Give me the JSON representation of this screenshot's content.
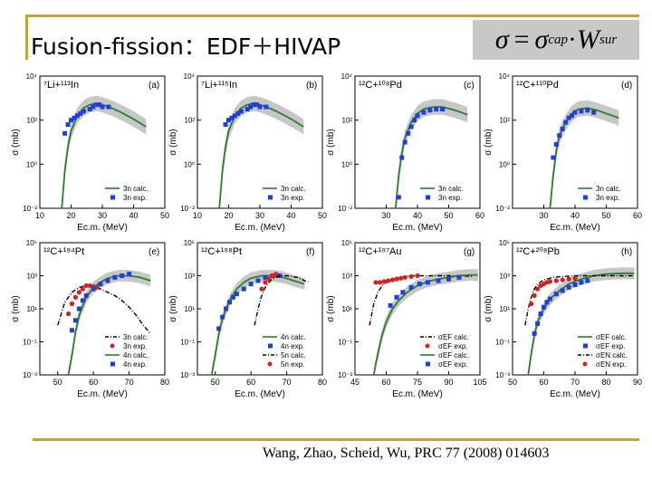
{
  "slide": {
    "title": "Fusion-fission：EDF＋HIVAP",
    "formula": {
      "lhs": "σ",
      "eq": "=",
      "sigma": "σ",
      "cap": "cap",
      "dot": "·",
      "W": "W",
      "sur": "sur"
    },
    "citation": "Wang, Zhao, Scheid, Wu, PRC 77 (2008) 014603"
  },
  "colors": {
    "accent_bar": "#c9a23a",
    "calc_green": "#2a7f2a",
    "exp_blue": "#1f3fdc",
    "exp_red": "#d62020",
    "band_gray": "#bdbdbd"
  },
  "chart_data": [
    {
      "type": "line",
      "panel": "(a)",
      "reaction": "⁷Li+¹¹³In",
      "xlabel": "Ec.m. (MeV)",
      "ylabel": "σ (mb)",
      "xlim": [
        10,
        50
      ],
      "xticks": [
        10,
        20,
        30,
        40,
        50
      ],
      "yticks": [
        "10⁴",
        "10²",
        "10⁰",
        "10⁻²"
      ],
      "log_exp": [
        4,
        -2
      ],
      "series": [
        {
          "name": "3n calc.",
          "style": "green",
          "x": [
            17,
            18,
            19,
            20,
            22,
            24,
            26,
            28,
            30,
            33,
            36,
            40,
            44
          ],
          "y": [
            -2,
            -0.3,
            0.8,
            1.5,
            2.2,
            2.55,
            2.7,
            2.75,
            2.7,
            2.55,
            2.35,
            2.05,
            1.7
          ]
        },
        {
          "name": "3n exp.",
          "style": "blue-square",
          "x": [
            18,
            19,
            20,
            21,
            22,
            23,
            24,
            26,
            27,
            28,
            29,
            30,
            32
          ],
          "y": [
            1.4,
            1.8,
            2.0,
            2.1,
            2.2,
            2.3,
            2.4,
            2.5,
            2.6,
            2.7,
            2.7,
            2.6,
            2.6
          ]
        }
      ]
    },
    {
      "type": "line",
      "panel": "(b)",
      "reaction": "⁷Li+¹¹⁵In",
      "xlabel": "Ec.m. (MeV)",
      "ylabel": "σ (mb)",
      "xlim": [
        10,
        50
      ],
      "xticks": [
        10,
        20,
        30,
        40,
        50
      ],
      "yticks": [
        "10⁴",
        "10²",
        "10⁰",
        "10⁻²"
      ],
      "log_exp": [
        4,
        -2
      ],
      "series": [
        {
          "name": "3n calc.",
          "style": "green",
          "x": [
            17,
            18,
            19,
            20,
            22,
            24,
            26,
            28,
            30,
            33,
            36,
            40,
            44
          ],
          "y": [
            -2,
            -0.3,
            0.8,
            1.5,
            2.2,
            2.55,
            2.7,
            2.75,
            2.7,
            2.55,
            2.35,
            2.05,
            1.7
          ]
        },
        {
          "name": "3n exp.",
          "style": "blue-square",
          "x": [
            19,
            20,
            21,
            22,
            23,
            24,
            26,
            27,
            28,
            29,
            30,
            32
          ],
          "y": [
            1.8,
            2.0,
            2.1,
            2.2,
            2.3,
            2.4,
            2.5,
            2.6,
            2.7,
            2.7,
            2.6,
            2.6
          ]
        }
      ]
    },
    {
      "type": "line",
      "panel": "(c)",
      "reaction": "¹²C+¹⁰⁸Pd",
      "xlabel": "Ec.m. (MeV)",
      "ylabel": "σ (mb)",
      "xlim": [
        20,
        60
      ],
      "xticks": [
        30,
        40,
        50,
        60
      ],
      "yticks": [
        "10⁴",
        "10²",
        "10⁰",
        "10⁻²"
      ],
      "log_exp": [
        4,
        -2
      ],
      "series": [
        {
          "name": "3n calc.",
          "style": "green",
          "x": [
            33,
            34,
            35,
            36,
            38,
            40,
            42,
            45,
            48,
            52,
            56
          ],
          "y": [
            -2,
            -0.5,
            0.5,
            1.2,
            1.9,
            2.3,
            2.5,
            2.6,
            2.6,
            2.45,
            2.25
          ]
        },
        {
          "name": "3n exp.",
          "style": "blue-square",
          "x": [
            34,
            35,
            36,
            37,
            38,
            39,
            40,
            42,
            44,
            46,
            48
          ],
          "y": [
            -1.5,
            0.3,
            1.0,
            1.4,
            1.7,
            2.0,
            2.2,
            2.35,
            2.45,
            2.5,
            2.5
          ]
        }
      ]
    },
    {
      "type": "line",
      "panel": "(d)",
      "reaction": "¹²C+¹¹⁰Pd",
      "xlabel": "Ec.m. (MeV)",
      "ylabel": "σ (mb)",
      "xlim": [
        20,
        60
      ],
      "xticks": [
        30,
        40,
        50,
        60
      ],
      "yticks": [
        "10⁴",
        "10²",
        "10⁰",
        "10⁻²"
      ],
      "log_exp": [
        4,
        -2
      ],
      "series": [
        {
          "name": "3n calc.",
          "style": "green",
          "x": [
            32,
            33,
            34,
            35,
            37,
            39,
            41,
            44,
            47,
            50,
            54
          ],
          "y": [
            -2,
            -0.5,
            0.6,
            1.3,
            1.9,
            2.3,
            2.5,
            2.55,
            2.45,
            2.3,
            2.1
          ]
        },
        {
          "name": "3n exp.",
          "style": "blue-square",
          "x": [
            33,
            34,
            35,
            36,
            37,
            38,
            39,
            40,
            42,
            44,
            46
          ],
          "y": [
            0.3,
            0.9,
            1.3,
            1.6,
            1.9,
            2.1,
            2.2,
            2.35,
            2.4,
            2.45,
            2.35
          ]
        }
      ]
    },
    {
      "type": "line",
      "panel": "(e)",
      "reaction": "¹²C+¹⁹⁴Pt",
      "xlabel": "Ec.m. (MeV)",
      "ylabel": "σ (mb)",
      "xlim": [
        45,
        80
      ],
      "xticks": [
        50,
        60,
        70,
        80
      ],
      "yticks": [
        "10⁵",
        "10³",
        "10¹",
        "10⁻¹",
        "10⁻³"
      ],
      "log_exp": [
        5,
        -3
      ],
      "series": [
        {
          "name": "3n calc.",
          "style": "black-dash",
          "x": [
            50,
            52,
            54,
            56,
            58,
            60,
            62,
            64,
            66,
            68,
            70,
            72,
            74,
            76
          ],
          "y": [
            0,
            1.4,
            2.0,
            2.3,
            2.4,
            2.3,
            2.2,
            2.0,
            1.8,
            1.5,
            1.1,
            0.6,
            0,
            -0.5
          ]
        },
        {
          "name": "3n exp.",
          "style": "red-circle",
          "x": [
            53,
            54,
            55,
            56,
            57,
            58,
            59,
            60,
            61
          ],
          "y": [
            0.7,
            1.3,
            1.7,
            2.0,
            2.2,
            2.4,
            2.4,
            2.35,
            2.3
          ]
        },
        {
          "name": "4n calc.",
          "style": "green",
          "x": [
            53,
            54,
            55,
            56,
            58,
            60,
            62,
            64,
            67,
            70,
            73,
            76
          ],
          "y": [
            -3,
            -1.8,
            -0.4,
            0.6,
            1.7,
            2.3,
            2.6,
            2.85,
            3.0,
            3.0,
            2.9,
            2.7
          ]
        },
        {
          "name": "4n exp.",
          "style": "blue-square",
          "x": [
            54,
            55,
            56,
            57,
            58,
            60,
            62,
            64,
            66,
            68,
            70
          ],
          "y": [
            -0.3,
            0.3,
            1.0,
            1.5,
            1.8,
            2.2,
            2.5,
            2.7,
            2.9,
            3.0,
            3.1
          ]
        }
      ]
    },
    {
      "type": "line",
      "panel": "(f)",
      "reaction": "¹²C+¹⁹⁸Pt",
      "xlabel": "Ec.m. (MeV)",
      "ylabel": "σ (mb)",
      "xlim": [
        45,
        80
      ],
      "xticks": [
        50,
        60,
        70,
        80
      ],
      "yticks": [
        "10⁵",
        "10³",
        "10¹",
        "10⁻¹",
        "10⁻³"
      ],
      "log_exp": [
        5,
        -3
      ],
      "series": [
        {
          "name": "4n calc.",
          "style": "green",
          "x": [
            49,
            50,
            51,
            52,
            54,
            56,
            58,
            60,
            63,
            66,
            69,
            72,
            75
          ],
          "y": [
            -3,
            -1.8,
            -0.5,
            0.4,
            1.5,
            2.2,
            2.6,
            2.85,
            3.0,
            3.0,
            2.9,
            2.7,
            2.5
          ]
        },
        {
          "name": "4n exp.",
          "style": "blue-square",
          "x": [
            51,
            52,
            53,
            54,
            55,
            56,
            58,
            60,
            62,
            64,
            66,
            68
          ],
          "y": [
            -0.2,
            0.5,
            1.0,
            1.4,
            1.7,
            1.9,
            2.2,
            2.5,
            2.7,
            2.9,
            3.0,
            3.0
          ]
        },
        {
          "name": "5n calc.",
          "style": "black-dash",
          "x": [
            61,
            62,
            63,
            64,
            65,
            66,
            68,
            70,
            73,
            76
          ],
          "y": [
            0,
            1.0,
            1.8,
            2.3,
            2.6,
            2.8,
            3.0,
            3.0,
            2.9,
            2.6
          ]
        },
        {
          "name": "5n exp.",
          "style": "red-circle",
          "x": [
            63,
            64,
            65,
            66,
            67
          ],
          "y": [
            2.2,
            2.6,
            2.8,
            3.0,
            3.1
          ]
        }
      ]
    },
    {
      "type": "line",
      "panel": "(g)",
      "reaction": "¹²C+¹⁹⁷Au",
      "xlabel": "Ec.m. (MeV)",
      "ylabel": "σ (mb)",
      "xlim": [
        45,
        105
      ],
      "xticks": [
        45,
        60,
        75,
        90,
        105
      ],
      "yticks": [
        "10⁵",
        "10³",
        "10¹",
        "10⁻¹",
        "10⁻³"
      ],
      "log_exp": [
        5,
        -3
      ],
      "series": [
        {
          "name": "σEF calc.",
          "style": "black-dash",
          "x": [
            52,
            54,
            56,
            58,
            60,
            64,
            68,
            72,
            78,
            84,
            90,
            96,
            102
          ],
          "y": [
            0,
            1.3,
            2.0,
            2.4,
            2.6,
            2.8,
            2.9,
            3.0,
            3.0,
            3.0,
            3.0,
            3.0,
            2.95
          ]
        },
        {
          "name": "σEF exp.",
          "style": "red-circle",
          "x": [
            55,
            57,
            59,
            61,
            63,
            65,
            67,
            69,
            72,
            75
          ],
          "y": [
            2.6,
            2.6,
            2.65,
            2.7,
            2.75,
            2.8,
            2.85,
            2.9,
            2.95,
            3.0
          ]
        },
        {
          "name": "σEF calc.",
          "style": "green",
          "x": [
            54,
            56,
            58,
            60,
            63,
            66,
            70,
            75,
            80,
            85,
            90,
            95,
            100,
            104
          ],
          "y": [
            -3,
            -1.7,
            -0.6,
            0.2,
            1.0,
            1.5,
            2.0,
            2.4,
            2.65,
            2.8,
            2.9,
            3.0,
            3.05,
            3.05
          ]
        },
        {
          "name": "σEF exp.",
          "style": "blue-square",
          "x": [
            62,
            65,
            68,
            72,
            76,
            80,
            85,
            90,
            95
          ],
          "y": [
            1.2,
            1.7,
            2.0,
            2.3,
            2.5,
            2.6,
            2.7,
            2.8,
            2.9
          ]
        }
      ]
    },
    {
      "type": "line",
      "panel": "(h)",
      "reaction": "¹²C+²⁰⁸Pb",
      "xlabel": "Ec.m. (MeV)",
      "ylabel": "σ (mb)",
      "xlim": [
        50,
        90
      ],
      "xticks": [
        50,
        60,
        70,
        80,
        90
      ],
      "yticks": [
        "10⁵",
        "10³",
        "10¹",
        "10⁻¹",
        "10⁻³"
      ],
      "log_exp": [
        5,
        -3
      ],
      "series": [
        {
          "name": "σEF calc.",
          "style": "green",
          "x": [
            55,
            56,
            57,
            58,
            60,
            62,
            65,
            68,
            72,
            76,
            80,
            85,
            89
          ],
          "y": [
            -3,
            -1.7,
            -0.6,
            0.2,
            1.0,
            1.6,
            2.1,
            2.5,
            2.8,
            3.0,
            3.1,
            3.15,
            3.15
          ]
        },
        {
          "name": "σEF exp.",
          "style": "blue-square",
          "x": [
            57,
            58,
            59,
            60,
            61,
            62,
            64,
            66,
            68,
            70,
            72,
            74
          ],
          "y": [
            -0.5,
            0.1,
            0.7,
            1.1,
            1.4,
            1.6,
            1.9,
            2.1,
            2.3,
            2.45,
            2.6,
            2.7
          ]
        },
        {
          "name": "σEN calc.",
          "style": "black-dash",
          "x": [
            54,
            55,
            56,
            57,
            58,
            60,
            63,
            66,
            70,
            75,
            80,
            85,
            89
          ],
          "y": [
            0,
            1.0,
            1.7,
            2.2,
            2.5,
            2.75,
            2.9,
            2.95,
            3.0,
            3.0,
            3.0,
            3.0,
            3.0
          ]
        },
        {
          "name": "σEN exp.",
          "style": "red-circle",
          "x": [
            56,
            57,
            58,
            59,
            60,
            61,
            62,
            64,
            66,
            68,
            70
          ],
          "y": [
            1.3,
            1.8,
            2.2,
            2.4,
            2.5,
            2.6,
            2.65,
            2.7,
            2.75,
            2.8,
            2.85
          ]
        }
      ]
    }
  ]
}
